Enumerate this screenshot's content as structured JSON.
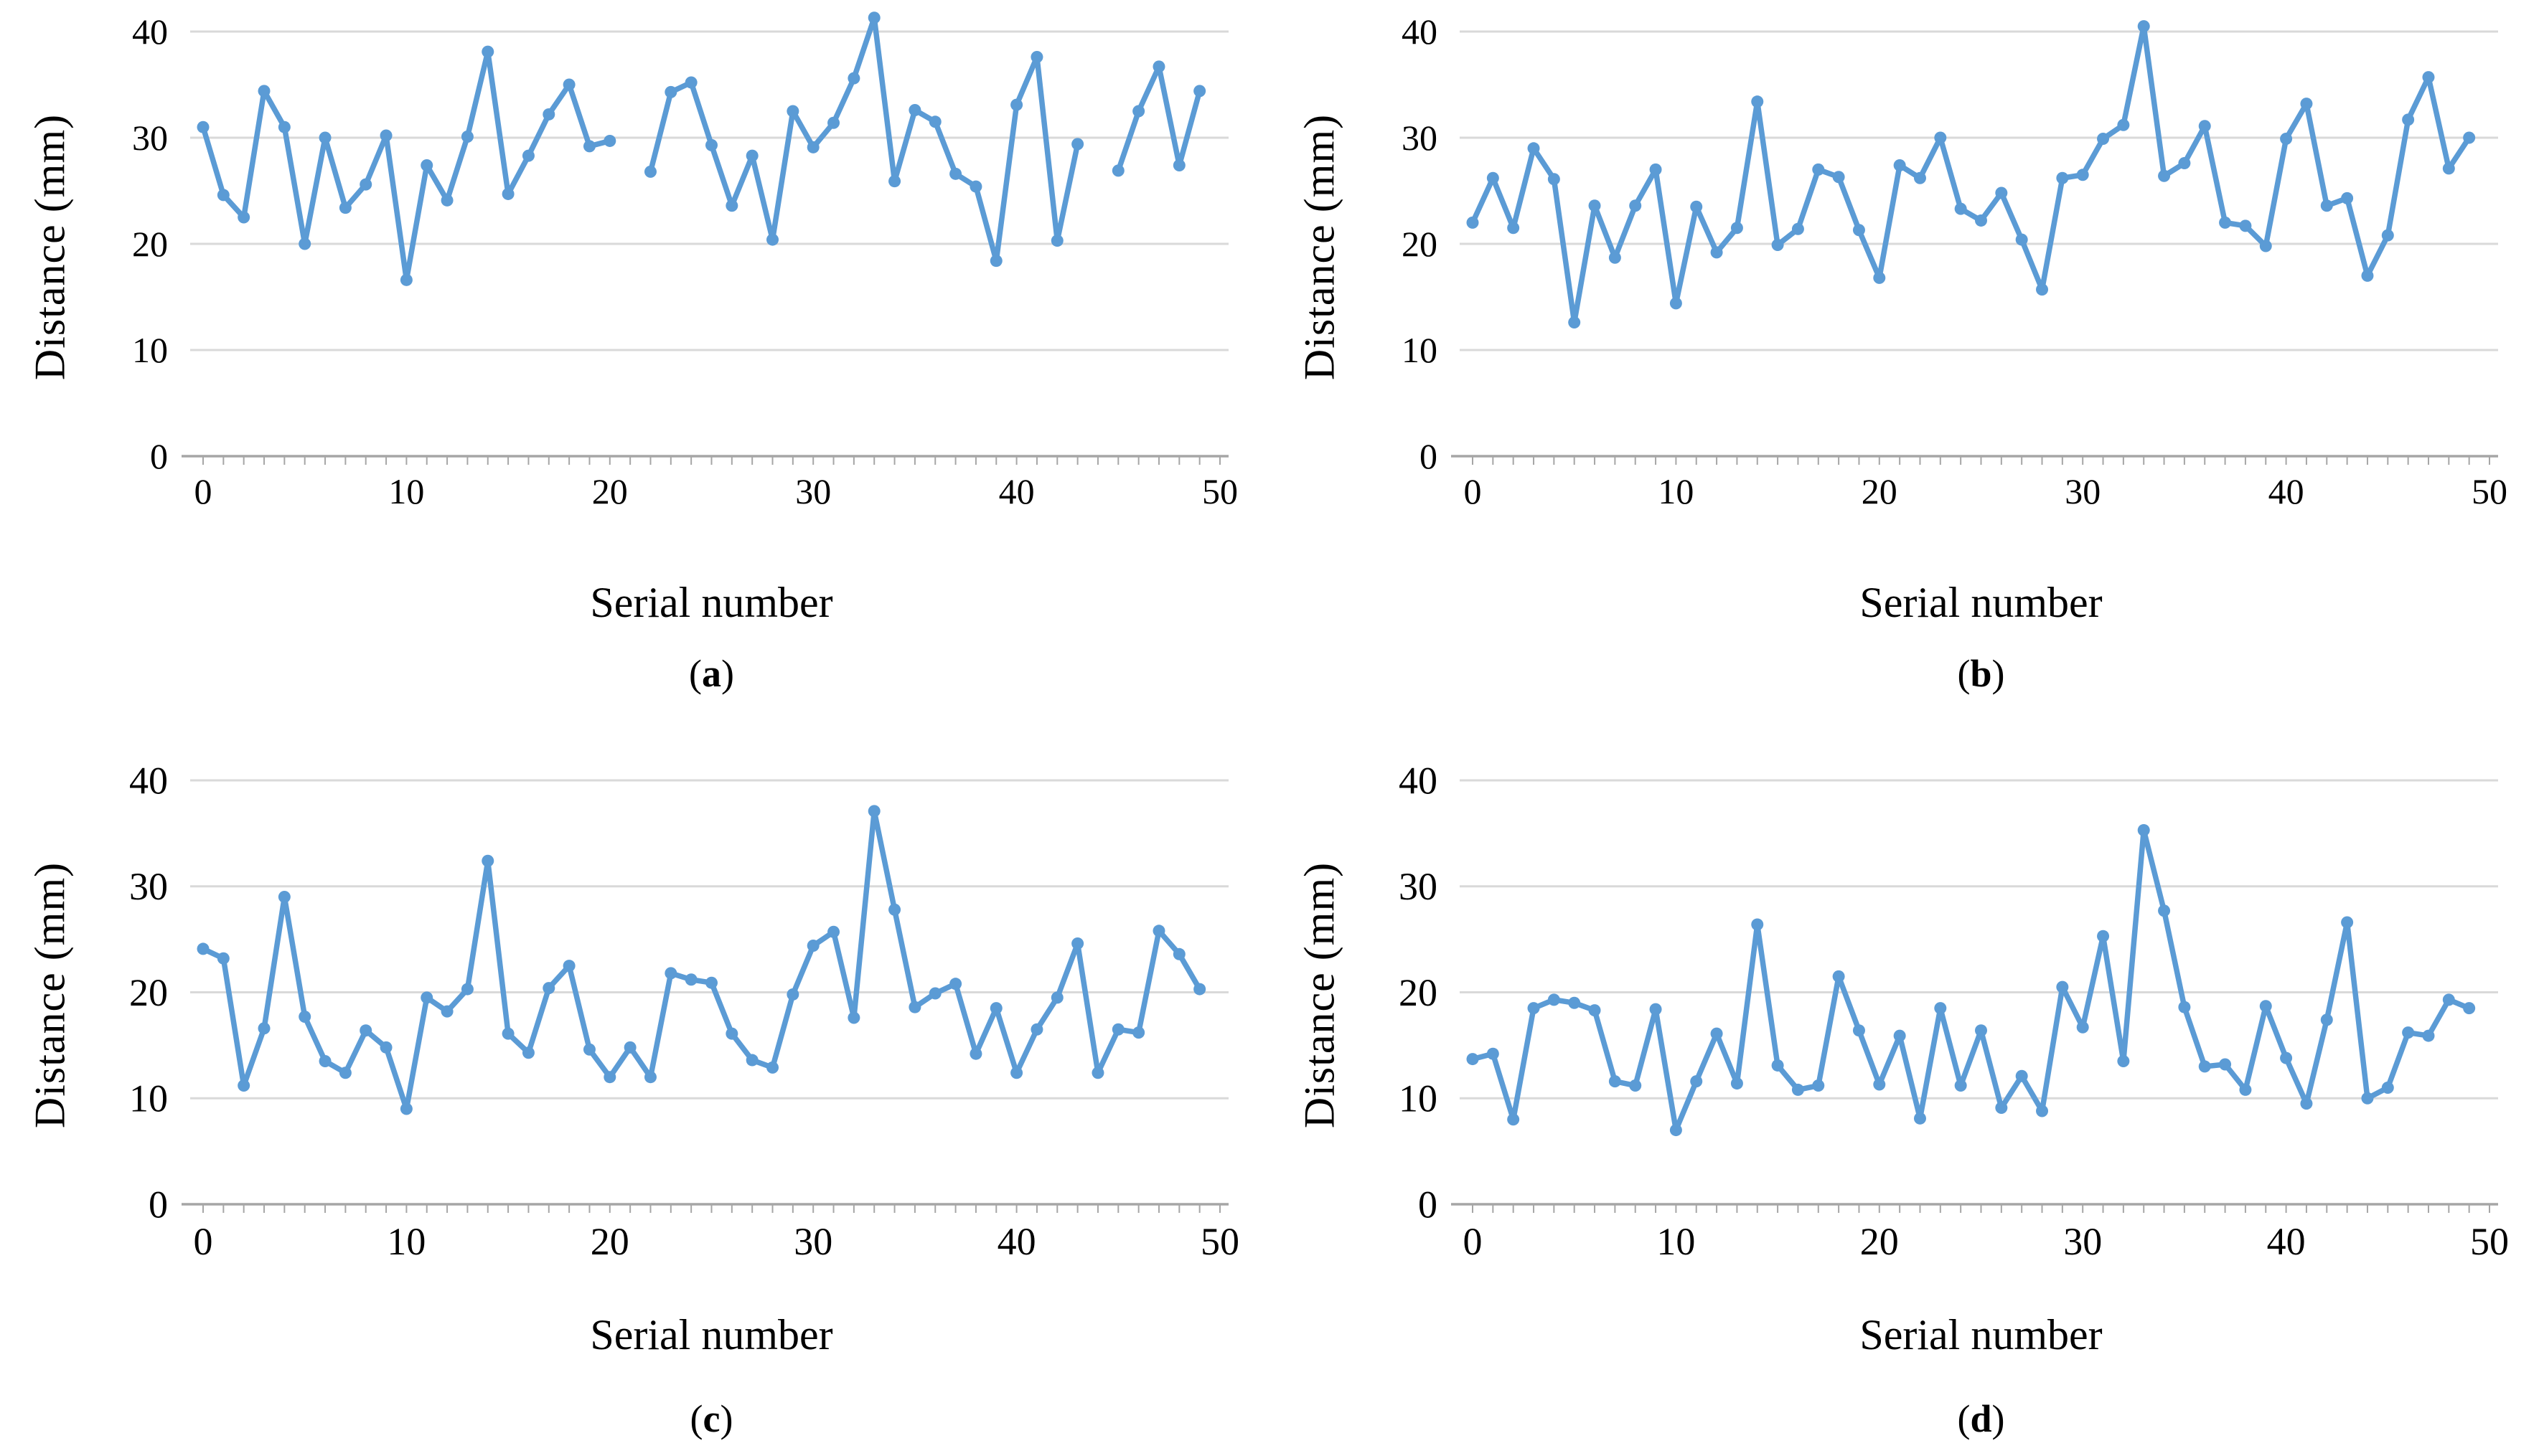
{
  "figure": {
    "background": "#ffffff",
    "series_color": "#5B9BD5",
    "gridline_color": "#D9D9D9",
    "axis_color": "#A6A6A6",
    "text_color": "#000000",
    "y_axis_title": "Distance (mm)",
    "x_axis_title": "Serial number",
    "panel_labels": [
      "a",
      "b",
      "c",
      "d"
    ]
  },
  "chart_data": [
    {
      "type": "line",
      "panel": "a",
      "title": "",
      "xlabel": "Serial number",
      "ylabel": "Distance (mm)",
      "xlim": [
        0,
        50
      ],
      "ylim": [
        0,
        40
      ],
      "x_ticks": [
        0,
        10,
        20,
        30,
        40,
        50
      ],
      "y_ticks": [
        0,
        10,
        20,
        30,
        40
      ],
      "grid": "horizontal",
      "legend": "none",
      "x": "serial 0-49, gaps (missing points) at 21 and 44",
      "values": [
        31,
        24.6,
        22.5,
        34.4,
        31,
        20,
        30,
        23.4,
        25.6,
        30.2,
        16.6,
        27.4,
        24.1,
        30.1,
        38.1,
        24.7,
        28.3,
        32.2,
        35,
        29.2,
        29.7,
        null,
        26.8,
        34.3,
        35.2,
        29.3,
        23.6,
        28.3,
        20.4,
        32.5,
        29.1,
        31.4,
        35.6,
        41.3,
        25.9,
        32.6,
        31.5,
        26.6,
        25.4,
        18.4,
        33.1,
        37.6,
        20.3,
        29.4,
        null,
        26.9,
        32.5,
        36.7,
        27.4,
        34.4
      ]
    },
    {
      "type": "line",
      "panel": "b",
      "title": "",
      "xlabel": "Serial number",
      "ylabel": "Distance (mm)",
      "xlim": [
        0,
        50
      ],
      "ylim": [
        0,
        40
      ],
      "x_ticks": [
        0,
        10,
        20,
        30,
        40,
        50
      ],
      "y_ticks": [
        0,
        10,
        20,
        30,
        40
      ],
      "grid": "horizontal",
      "legend": "none",
      "x": "serial 0-49",
      "values": [
        22,
        26.2,
        21.5,
        29,
        26.1,
        12.6,
        23.6,
        18.7,
        23.6,
        27,
        14.4,
        23.5,
        19.2,
        21.5,
        33.4,
        19.9,
        21.4,
        27,
        26.3,
        21.3,
        16.8,
        27.4,
        26.2,
        30,
        23.3,
        22.2,
        24.8,
        20.4,
        15.7,
        26.2,
        26.5,
        29.9,
        31.2,
        40.5,
        26.4,
        27.6,
        31.1,
        22,
        21.7,
        19.8,
        29.9,
        33.2,
        23.6,
        24.3,
        17,
        20.8,
        31.7,
        35.7,
        27.1,
        30
      ]
    },
    {
      "type": "line",
      "panel": "c",
      "title": "",
      "xlabel": "Serial number",
      "ylabel": "Distance (mm)",
      "xlim": [
        0,
        50
      ],
      "ylim": [
        0,
        40
      ],
      "x_ticks": [
        0,
        10,
        20,
        30,
        40,
        50
      ],
      "y_ticks": [
        0,
        10,
        20,
        30,
        40
      ],
      "grid": "horizontal",
      "legend": "none",
      "x": "serial 0-49",
      "values": [
        24.1,
        23.2,
        11.2,
        16.6,
        29,
        17.7,
        13.5,
        12.4,
        16.4,
        14.8,
        9,
        19.5,
        18.2,
        20.3,
        32.4,
        16.1,
        14.3,
        20.4,
        22.5,
        14.6,
        12,
        14.8,
        12,
        21.8,
        21.2,
        20.9,
        16.1,
        13.6,
        12.9,
        19.8,
        24.4,
        25.7,
        17.6,
        37.1,
        27.8,
        18.6,
        19.9,
        20.8,
        14.2,
        18.5,
        12.4,
        16.5,
        19.5,
        24.6,
        12.4,
        16.5,
        16.2,
        25.8,
        23.6,
        20.3
      ]
    },
    {
      "type": "line",
      "panel": "d",
      "title": "",
      "xlabel": "Serial number",
      "ylabel": "Distance (mm)",
      "xlim": [
        0,
        50
      ],
      "ylim": [
        0,
        40
      ],
      "x_ticks": [
        0,
        10,
        20,
        30,
        40,
        50
      ],
      "y_ticks": [
        0,
        10,
        20,
        30,
        40
      ],
      "grid": "horizontal",
      "legend": "none",
      "x": "serial 0-49",
      "values": [
        13.7,
        14.2,
        8,
        18.5,
        19.3,
        19,
        18.3,
        11.6,
        11.2,
        18.4,
        7,
        11.6,
        16.1,
        11.4,
        26.4,
        13.1,
        10.8,
        11.2,
        21.5,
        16.4,
        11.3,
        15.9,
        8.1,
        18.5,
        11.2,
        16.4,
        9.1,
        12.1,
        8.8,
        20.5,
        16.7,
        25.3,
        13.5,
        35.3,
        27.7,
        18.6,
        13,
        13.2,
        10.8,
        18.7,
        13.8,
        9.5,
        17.4,
        26.6,
        10,
        11,
        16.2,
        15.9,
        19.3,
        18.5
      ]
    }
  ]
}
